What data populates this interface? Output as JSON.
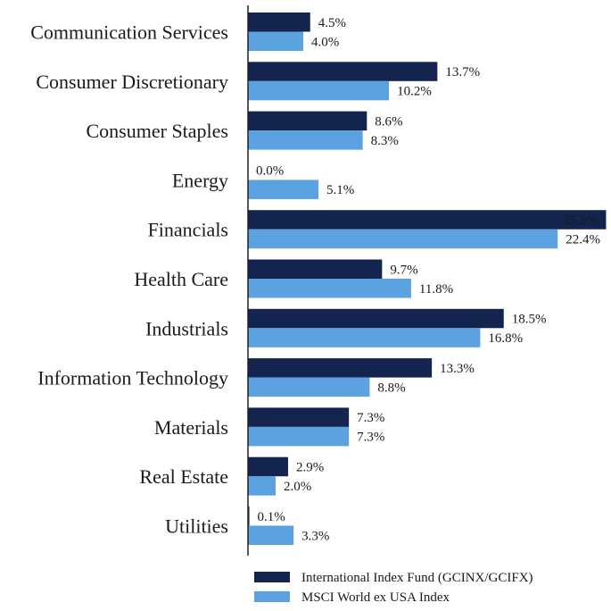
{
  "chart_data": {
    "type": "bar",
    "orientation": "horizontal",
    "categories": [
      "Communication Services",
      "Consumer Discretionary",
      "Consumer Staples",
      "Energy",
      "Financials",
      "Health Care",
      "Industrials",
      "Information Technology",
      "Materials",
      "Real Estate",
      "Utilities"
    ],
    "series": [
      {
        "name": "International Index Fund (GCINX/GCIFX)",
        "color": "#13254f",
        "values": [
          4.5,
          13.7,
          8.6,
          0.0,
          25.9,
          9.7,
          18.5,
          13.3,
          7.3,
          2.9,
          0.1
        ],
        "labels": [
          "4.5%",
          "13.7%",
          "8.6%",
          "0.0%",
          "25.9%",
          "9.7%",
          "18.5%",
          "13.3%",
          "7.3%",
          "2.9%",
          "0.1%"
        ]
      },
      {
        "name": "MSCI World ex USA Index",
        "color": "#5da2e0",
        "values": [
          4.0,
          10.2,
          8.3,
          5.1,
          22.4,
          11.8,
          16.8,
          8.8,
          7.3,
          2.0,
          3.3
        ],
        "labels": [
          "4.0%",
          "10.2%",
          "8.3%",
          "5.1%",
          "22.4%",
          "11.8%",
          "16.8%",
          "8.8%",
          "7.3%",
          "2.0%",
          "3.3%"
        ]
      }
    ],
    "xlim": [
      0,
      26
    ],
    "grid": false,
    "legend_position": "bottom"
  }
}
